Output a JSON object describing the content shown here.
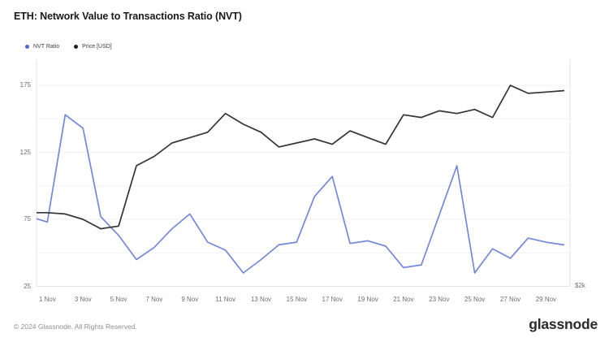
{
  "title": "ETH: Network Value to Transactions Ratio (NVT)",
  "legend": {
    "items": [
      {
        "label": "NVT Ratio",
        "color": "#4e68cf"
      },
      {
        "label": "Price [USD]",
        "color": "#1f1f1f"
      }
    ]
  },
  "footer": {
    "copyright": "© 2024 Glassnode. All Rights Reserved.",
    "brand": "glassnode"
  },
  "chart_data": {
    "type": "line",
    "title": "ETH: Network Value to Transactions Ratio (NVT)",
    "grid": "horizontal",
    "x_categories": [
      "31 Oct",
      "1 Nov",
      "2 Nov",
      "3 Nov",
      "4 Nov",
      "5 Nov",
      "6 Nov",
      "7 Nov",
      "8 Nov",
      "9 Nov",
      "10 Nov",
      "11 Nov",
      "12 Nov",
      "13 Nov",
      "14 Nov",
      "15 Nov",
      "16 Nov",
      "17 Nov",
      "18 Nov",
      "19 Nov",
      "20 Nov",
      "21 Nov",
      "22 Nov",
      "23 Nov",
      "24 Nov",
      "25 Nov",
      "26 Nov",
      "27 Nov",
      "28 Nov",
      "29 Nov",
      "30 Nov"
    ],
    "x_tick_labels": [
      "1 Nov",
      "3 Nov",
      "5 Nov",
      "7 Nov",
      "9 Nov",
      "11 Nov",
      "13 Nov",
      "15 Nov",
      "17 Nov",
      "19 Nov",
      "21 Nov",
      "23 Nov",
      "25 Nov",
      "27 Nov",
      "29 Nov"
    ],
    "left_axis": {
      "ticks": [
        175,
        125,
        75,
        25
      ],
      "grid_values": [
        25,
        50,
        75,
        100,
        125,
        150,
        175
      ],
      "range": [
        25,
        175
      ]
    },
    "right_axis": {
      "visible_label": "$2k"
    },
    "series": [
      {
        "name": "NVT Ratio",
        "color": "#7487d8",
        "axis": "left",
        "values": [
          77,
          73,
          153,
          143,
          77,
          63,
          45,
          54,
          68,
          79,
          58,
          52,
          35,
          45,
          56,
          58,
          92,
          107,
          57,
          59,
          55,
          39,
          41,
          78,
          115,
          35,
          53,
          46,
          61,
          58,
          56
        ]
      },
      {
        "name": "Price [USD]",
        "color": "#343434",
        "axis": "right",
        "values_unit": "left-axis equivalent as drawn",
        "values": [
          80,
          80,
          79,
          75,
          68,
          70,
          115,
          122,
          132,
          136,
          140,
          154,
          146,
          140,
          129,
          132,
          135,
          131,
          141,
          136,
          131,
          153,
          151,
          156,
          154,
          157,
          151,
          175,
          169,
          170,
          171
        ]
      }
    ]
  }
}
